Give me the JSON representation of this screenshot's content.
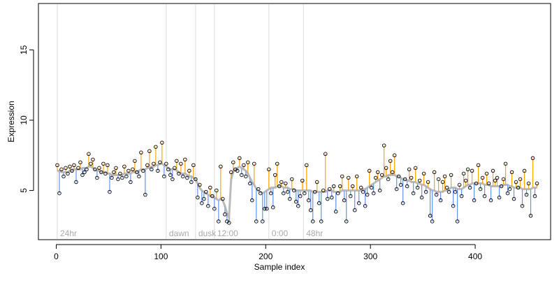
{
  "chart_data": {
    "type": "scatter",
    "xlabel": "Sample index",
    "ylabel": "Expression",
    "xlim": [
      -17,
      472
    ],
    "ylim": [
      1.5,
      18.3
    ],
    "xticks": [
      0,
      100,
      200,
      300,
      400
    ],
    "yticks": [
      5,
      10,
      15
    ],
    "point_color": "#000000",
    "fit_color": "#aaaaaa",
    "above_color": "#ffa500",
    "below_color": "#6495ed",
    "marker_color": "#999999",
    "markers": [
      {
        "x": 1,
        "label": "24hr"
      },
      {
        "x": 105,
        "label": "dawn"
      },
      {
        "x": 133,
        "label": "dusk"
      },
      {
        "x": 151,
        "label": "12:00"
      },
      {
        "x": 203,
        "label": "0:00"
      },
      {
        "x": 236,
        "label": "48hr"
      }
    ],
    "x": [
      1,
      3,
      5,
      7,
      9,
      11,
      13,
      15,
      17,
      19,
      21,
      23,
      25,
      27,
      29,
      31,
      33,
      35,
      37,
      39,
      41,
      43,
      45,
      47,
      49,
      51,
      53,
      55,
      57,
      59,
      61,
      63,
      65,
      67,
      69,
      71,
      73,
      75,
      77,
      79,
      81,
      83,
      85,
      87,
      89,
      91,
      93,
      95,
      97,
      99,
      101,
      103,
      105,
      107,
      109,
      111,
      113,
      115,
      117,
      119,
      121,
      123,
      125,
      127,
      129,
      131,
      133,
      135,
      137,
      139,
      141,
      143,
      145,
      147,
      149,
      151,
      153,
      155,
      157,
      159,
      161,
      163,
      165,
      167,
      169,
      171,
      173,
      175,
      177,
      179,
      181,
      183,
      185,
      187,
      189,
      191,
      193,
      195,
      197,
      199,
      201,
      203,
      205,
      207,
      209,
      211,
      213,
      215,
      217,
      219,
      221,
      223,
      225,
      227,
      229,
      231,
      233,
      235,
      237,
      239,
      241,
      243,
      245,
      247,
      249,
      251,
      253,
      255,
      257,
      259,
      261,
      263,
      265,
      267,
      269,
      271,
      273,
      275,
      277,
      279,
      281,
      283,
      285,
      287,
      289,
      291,
      293,
      295,
      297,
      299,
      301,
      303,
      305,
      307,
      309,
      311,
      313,
      315,
      317,
      319,
      321,
      323,
      325,
      327,
      329,
      331,
      333,
      335,
      337,
      339,
      341,
      343,
      345,
      347,
      349,
      351,
      353,
      355,
      357,
      359,
      361,
      363,
      365,
      367,
      369,
      371,
      373,
      375,
      377,
      379,
      381,
      383,
      385,
      387,
      389,
      391,
      393,
      395,
      397,
      399,
      401,
      403,
      405,
      407,
      409,
      411,
      413,
      415,
      417,
      419,
      421,
      423,
      425,
      427,
      429,
      431,
      433,
      435,
      437,
      439,
      441,
      443,
      445,
      447,
      449,
      451,
      453,
      455,
      457,
      459
    ],
    "values": [
      6.8,
      4.8,
      6.5,
      6.0,
      6.6,
      6.2,
      6.7,
      6.4,
      6.8,
      5.6,
      6.6,
      7.0,
      6.1,
      6.3,
      6.5,
      7.6,
      6.9,
      7.2,
      6.5,
      5.9,
      6.6,
      6.3,
      6.9,
      6.2,
      6.8,
      4.9,
      5.9,
      6.3,
      6.6,
      5.8,
      6.2,
      5.9,
      6.7,
      6.0,
      6.4,
      5.6,
      6.5,
      7.1,
      6.3,
      6.0,
      7.7,
      6.4,
      4.7,
      6.8,
      7.8,
      6.5,
      6.9,
      8.1,
      6.4,
      7.0,
      8.4,
      6.0,
      6.9,
      6.5,
      6.1,
      5.8,
      6.6,
      7.1,
      6.2,
      6.9,
      6.0,
      7.2,
      5.9,
      6.4,
      5.6,
      6.8,
      5.8,
      4.5,
      5.4,
      4.1,
      4.4,
      4.9,
      3.9,
      5.2,
      4.6,
      3.7,
      5.0,
      2.8,
      6.7,
      4.4,
      3.3,
      2.8,
      2.7,
      6.3,
      7.0,
      6.5,
      6.4,
      7.3,
      6.1,
      6.8,
      6.0,
      7.0,
      5.5,
      4.3,
      6.9,
      2.8,
      5.1,
      4.8,
      2.8,
      3.7,
      3.7,
      6.5,
      4.8,
      3.8,
      6.1,
      6.9,
      5.3,
      5.6,
      4.8,
      5.5,
      4.9,
      4.4,
      5.8,
      5.0,
      4.2,
      3.9,
      4.6,
      5.7,
      4.8,
      6.8,
      4.3,
      3.6,
      2.8,
      4.9,
      5.6,
      4.1,
      2.8,
      5.0,
      7.6,
      4.4,
      5.1,
      4.5,
      5.3,
      3.5,
      4.8,
      5.3,
      6.0,
      4.3,
      2.8,
      5.9,
      4.6,
      5.3,
      3.6,
      6.0,
      4.1,
      5.2,
      4.9,
      3.9,
      4.7,
      6.4,
      5.2,
      4.8,
      5.9,
      6.3,
      5.0,
      6.1,
      8.2,
      6.6,
      5.8,
      7.1,
      6.3,
      7.5,
      5.1,
      6.0,
      5.4,
      4.1,
      5.8,
      5.3,
      6.5,
      5.9,
      4.8,
      6.6,
      5.2,
      5.7,
      4.5,
      6.2,
      4.9,
      5.6,
      3.2,
      2.8,
      6.3,
      4.7,
      5.8,
      4.3,
      5.6,
      6.0,
      5.2,
      4.9,
      6.1,
      3.9,
      4.9,
      2.8,
      5.4,
      4.6,
      6.2,
      5.7,
      6.5,
      5.2,
      6.4,
      4.3,
      5.5,
      6.8,
      5.1,
      5.9,
      4.6,
      6.2,
      5.5,
      4.3,
      6.4,
      5.7,
      5.9,
      4.5,
      5.3,
      5.8,
      6.9,
      4.8,
      5.1,
      6.3,
      4.4,
      5.6,
      5.2,
      5.8,
      3.9,
      6.4,
      4.7,
      5.5,
      3.2,
      7.3,
      4.6,
      5.5
    ],
    "fit": [
      6.4,
      6.4,
      6.3,
      6.3,
      6.3,
      6.3,
      6.4,
      6.4,
      6.5,
      6.5,
      6.5,
      6.5,
      6.6,
      6.6,
      6.6,
      6.7,
      6.7,
      6.6,
      6.5,
      6.4,
      6.4,
      6.3,
      6.3,
      6.3,
      6.2,
      6.2,
      6.1,
      6.1,
      6.1,
      6.1,
      6.1,
      6.1,
      6.2,
      6.2,
      6.2,
      6.2,
      6.3,
      6.3,
      6.3,
      6.4,
      6.5,
      6.5,
      6.5,
      6.6,
      6.6,
      6.7,
      6.7,
      6.8,
      6.8,
      6.9,
      6.9,
      6.8,
      6.7,
      6.6,
      6.5,
      6.5,
      6.5,
      6.4,
      6.3,
      6.2,
      6.2,
      6.2,
      6.1,
      6.0,
      6.0,
      5.9,
      5.8,
      5.5,
      5.2,
      5.0,
      4.9,
      4.8,
      4.7,
      4.6,
      4.6,
      4.5,
      4.4,
      4.3,
      4.4,
      4.3,
      3.9,
      3.4,
      3.1,
      5.8,
      6.3,
      6.5,
      6.6,
      6.7,
      6.6,
      6.5,
      6.4,
      6.2,
      5.9,
      5.6,
      5.4,
      5.1,
      5.0,
      4.9,
      4.8,
      4.9,
      5.0,
      5.1,
      5.2,
      5.2,
      5.2,
      5.3,
      5.3,
      5.3,
      5.2,
      5.2,
      5.2,
      5.1,
      5.1,
      5.1,
      5.0,
      5.0,
      5.0,
      5.0,
      5.0,
      5.0,
      5.0,
      5.0,
      4.9,
      4.9,
      4.9,
      4.9,
      4.9,
      4.9,
      4.9,
      5.0,
      5.0,
      5.0,
      4.9,
      4.9,
      4.9,
      4.9,
      5.0,
      5.0,
      5.0,
      5.0,
      5.0,
      5.0,
      5.0,
      5.0,
      5.0,
      5.0,
      5.1,
      5.1,
      5.2,
      5.3,
      5.4,
      5.5,
      5.6,
      5.7,
      5.8,
      5.9,
      6.0,
      6.0,
      6.1,
      6.1,
      6.1,
      6.1,
      6.0,
      6.0,
      5.9,
      5.8,
      5.8,
      5.7,
      5.7,
      5.6,
      5.6,
      5.6,
      5.5,
      5.5,
      5.4,
      5.4,
      5.3,
      5.2,
      5.1,
      5.0,
      5.0,
      4.9,
      4.9,
      4.9,
      4.9,
      5.0,
      5.0,
      5.1,
      5.2,
      5.2,
      5.2,
      5.1,
      5.1,
      5.1,
      5.2,
      5.3,
      5.4,
      5.4,
      5.5,
      5.5,
      5.5,
      5.5,
      5.5,
      5.5,
      5.4,
      5.4,
      5.4,
      5.3,
      5.3,
      5.3,
      5.3,
      5.3,
      5.3,
      5.4,
      5.4,
      5.4,
      5.3,
      5.3,
      5.2,
      5.2,
      5.2,
      5.2,
      5.1,
      5.1,
      5.1,
      5.1,
      5.1,
      5.2,
      5.2,
      5.2
    ]
  }
}
